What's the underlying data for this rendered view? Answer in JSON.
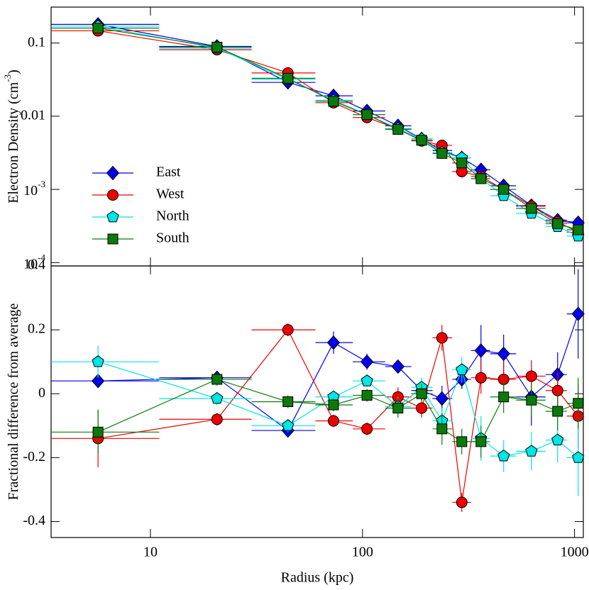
{
  "chart_data": [
    {
      "type": "scatter-line",
      "log_x": true,
      "log_y": true,
      "ylabel": {
        "text": "Electron Density (cm",
        "exponent": "-3",
        "suffix": ")"
      },
      "xlim": [
        3.4,
        1100
      ],
      "xticks": [
        10,
        100,
        1000
      ],
      "ylim": [
        9e-05,
        0.31
      ],
      "yticks": [
        0.1,
        0.01,
        {
          "value": 0.001,
          "label": "10",
          "exponent": "-3"
        },
        {
          "value": 0.0001,
          "label": "10",
          "exponent": "-4"
        }
      ],
      "legend": "lower left",
      "x": [
        5.66,
        20.6,
        44.5,
        73,
        105,
        147,
        190,
        237,
        294,
        362,
        463,
        626,
        832,
        1040
      ],
      "bins": [
        3.4,
        11,
        30,
        60,
        90,
        128,
        170,
        214,
        265,
        325,
        400,
        530,
        730,
        920,
        1100
      ],
      "series": [
        {
          "name": "East",
          "color": "#0000ee",
          "marker": "diamond",
          "values": [
            0.18,
            0.09,
            0.029,
            0.019,
            0.0118,
            0.0074,
            0.0049,
            0.0034,
            0.0027,
            0.00185,
            0.00112,
            0.0006,
            0.00038,
            0.00035
          ]
        },
        {
          "name": "West",
          "color": "#ee0000",
          "marker": "circle",
          "values": [
            0.147,
            0.081,
            0.039,
            0.0153,
            0.0096,
            0.0067,
            0.0046,
            0.004,
            0.00175,
            0.0015,
            0.001,
            0.00059,
            0.00036,
            0.00026
          ]
        },
        {
          "name": "North",
          "color": "#00e5e5",
          "marker": "pentagon",
          "values": [
            0.17,
            0.085,
            0.032,
            0.0165,
            0.0105,
            0.0068,
            0.0049,
            0.0032,
            0.0027,
            0.0014,
            0.00082,
            0.00047,
            0.00031,
            0.00023
          ]
        },
        {
          "name": "South",
          "color": "#0b7a0b",
          "marker": "square",
          "values": [
            0.16,
            0.088,
            0.033,
            0.016,
            0.0105,
            0.0066,
            0.0047,
            0.0031,
            0.0023,
            0.0014,
            0.001,
            0.00055,
            0.00034,
            0.00028
          ]
        }
      ]
    },
    {
      "type": "scatter-line",
      "log_x": true,
      "log_y": false,
      "xlabel": "Radius (kpc)",
      "ylabel": {
        "text": "Fractional difference from average"
      },
      "xlim": [
        3.4,
        1100
      ],
      "xticks": [
        10,
        100,
        1000
      ],
      "ylim": [
        -0.45,
        0.4
      ],
      "yticks": [
        0.4,
        0.2,
        0,
        -0.2,
        -0.4
      ],
      "x": [
        5.66,
        20.6,
        44.5,
        73,
        105,
        147,
        190,
        237,
        294,
        362,
        463,
        626,
        832,
        1040
      ],
      "bins": [
        3.4,
        11,
        30,
        60,
        90,
        128,
        170,
        214,
        265,
        325,
        400,
        530,
        730,
        920,
        1100
      ],
      "series": [
        {
          "name": "East",
          "color": "#0000ee",
          "marker": "diamond",
          "values": [
            0.04,
            0.05,
            -0.115,
            0.16,
            0.1,
            0.085,
            0.01,
            -0.015,
            0.045,
            0.135,
            0.125,
            -0.01,
            0.06,
            0.25
          ],
          "errors": [
            0.02,
            0.02,
            0.02,
            0.035,
            0.025,
            0.02,
            0.03,
            0.04,
            0.03,
            0.08,
            0.06,
            0.09,
            0.07,
            0.14
          ]
        },
        {
          "name": "West",
          "color": "#ee0000",
          "marker": "circle",
          "values": [
            -0.14,
            -0.08,
            0.2,
            -0.085,
            -0.11,
            -0.01,
            -0.045,
            0.175,
            -0.34,
            0.05,
            0.045,
            0.055,
            0.01,
            -0.07
          ],
          "errors": [
            0.09,
            0.02,
            0.02,
            0.02,
            0.02,
            0.03,
            0.03,
            0.04,
            0.03,
            0.05,
            0.05,
            0.05,
            0.06,
            0.1
          ]
        },
        {
          "name": "North",
          "color": "#00e5e5",
          "marker": "pentagon",
          "values": [
            0.1,
            -0.015,
            -0.1,
            -0.01,
            0.04,
            -0.04,
            0.02,
            -0.085,
            0.075,
            -0.14,
            -0.195,
            -0.18,
            -0.145,
            -0.2
          ],
          "errors": [
            0.05,
            0.02,
            0.02,
            0.02,
            0.02,
            0.03,
            0.03,
            0.04,
            0.04,
            0.07,
            0.05,
            0.06,
            0.07,
            0.12
          ]
        },
        {
          "name": "South",
          "color": "#0b7a0b",
          "marker": "square",
          "values": [
            -0.12,
            0.045,
            -0.025,
            -0.035,
            -0.005,
            -0.045,
            0.0,
            -0.11,
            -0.15,
            -0.15,
            -0.01,
            -0.02,
            -0.055,
            -0.03
          ],
          "errors": [
            0.07,
            0.02,
            0.02,
            0.02,
            0.02,
            0.03,
            0.03,
            0.05,
            0.04,
            0.05,
            0.05,
            0.05,
            0.06,
            0.08
          ]
        }
      ]
    }
  ]
}
